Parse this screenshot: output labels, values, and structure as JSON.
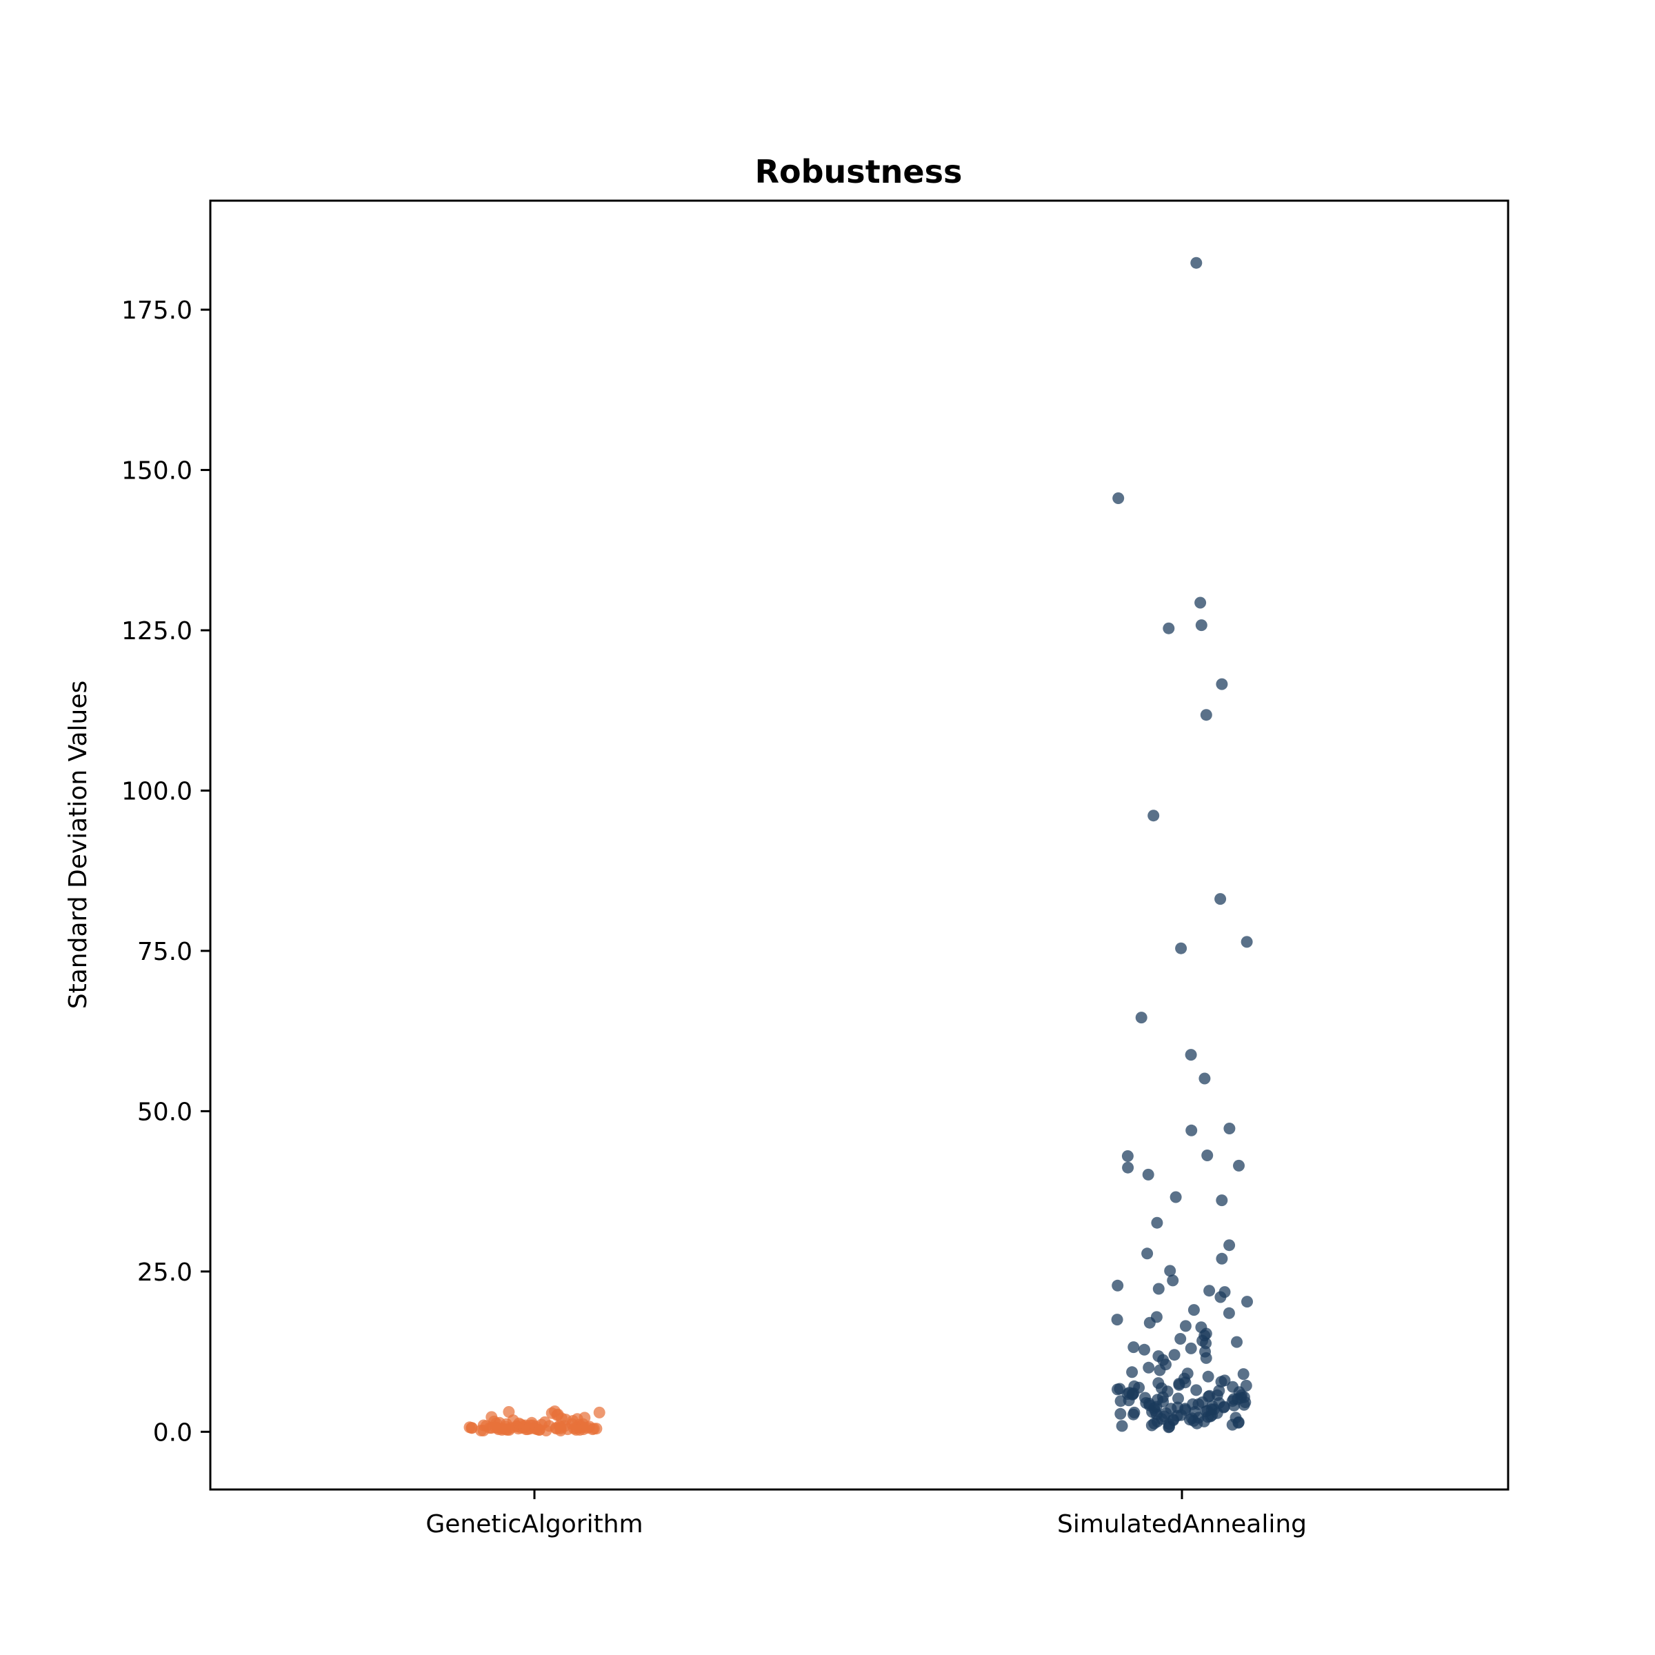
{
  "chart_data": {
    "type": "scatter",
    "title": "Robustness",
    "xlabel": "",
    "ylabel": "Standard Deviation Values",
    "ylim": [
      -9,
      192
    ],
    "yticks": [
      0,
      25,
      50,
      75,
      100,
      125,
      150,
      175
    ],
    "ytick_labels": [
      "0.0",
      "25.0",
      "50.0",
      "75.0",
      "100.0",
      "125.0",
      "150.0",
      "175.0"
    ],
    "categories": [
      "GeneticAlgorithm",
      "SimulatedAnnealing"
    ],
    "grid": false,
    "legend": "none",
    "series": [
      {
        "category": "GeneticAlgorithm",
        "color": "#E8713A",
        "values": [
          3.2,
          3.1,
          2.9,
          3.0,
          2.7,
          2.6,
          2.3,
          2.2,
          2.1,
          2.0,
          1.9,
          1.8,
          1.7,
          1.6,
          1.5,
          1.4,
          1.3,
          1.2,
          1.2,
          1.1,
          1.0,
          1.0,
          0.9,
          0.9,
          0.8,
          0.8,
          0.8,
          0.7,
          0.7,
          0.7,
          0.6,
          0.6,
          0.6,
          0.6,
          0.5,
          0.5,
          0.5,
          0.5,
          0.4,
          0.4,
          0.4,
          0.4,
          0.3,
          0.3,
          0.3,
          0.3,
          0.2,
          0.2,
          0.2,
          0.2,
          0.9,
          1.1,
          0.7,
          0.5,
          1.3,
          0.6,
          0.8,
          0.4,
          1.0,
          0.6,
          0.3,
          0.9,
          0.5,
          0.7,
          1.2,
          0.4,
          0.8,
          0.6,
          0.5,
          1.4,
          0.3,
          0.7,
          0.9,
          0.5,
          0.6,
          1.1,
          0.4,
          0.8,
          0.6,
          0.3,
          1.0,
          0.5,
          0.7,
          0.4,
          0.6
        ]
      },
      {
        "category": "SimulatedAnnealing",
        "color": "#1B3A5C",
        "values": [
          182.3,
          145.6,
          129.3,
          125.8,
          125.3,
          116.6,
          111.8,
          96.1,
          83.1,
          76.4,
          75.4,
          64.6,
          58.8,
          55.1,
          47.3,
          47.0,
          43.1,
          43.0,
          41.5,
          41.2,
          40.1,
          36.6,
          36.1,
          32.6,
          29.1,
          27.8,
          27.0,
          25.1,
          23.6,
          22.8,
          22.3,
          22.0,
          21.8,
          21.0,
          20.3,
          19.0,
          18.5,
          17.9,
          17.5,
          17.0,
          16.5,
          16.3,
          15.3,
          15.0,
          14.5,
          14.2,
          14.0,
          13.8,
          13.2,
          13.0,
          12.8,
          12.5,
          12.0,
          11.8,
          11.5,
          11.2,
          10.5,
          10.0,
          9.6,
          9.3,
          9.1,
          9.0,
          8.6,
          8.3,
          8.0,
          7.8,
          7.6,
          7.5,
          7.3,
          7.1,
          7.0,
          6.8,
          6.6,
          6.5,
          6.3,
          6.1,
          6.0,
          5.9,
          5.8,
          5.7,
          5.6,
          5.5,
          5.4,
          5.3,
          5.2,
          5.1,
          5.0,
          4.9,
          4.8,
          4.7,
          4.6,
          4.5,
          4.4,
          4.3,
          4.2,
          4.1,
          4.0,
          3.9,
          3.8,
          3.7,
          3.6,
          3.5,
          3.4,
          3.3,
          3.2,
          3.1,
          3.0,
          2.9,
          2.8,
          2.7,
          2.6,
          2.5,
          2.4,
          2.3,
          2.2,
          2.1,
          2.0,
          1.9,
          1.8,
          1.7,
          1.6,
          1.5,
          1.4,
          1.3,
          1.2,
          1.1,
          1.0,
          0.9,
          0.8,
          0.7,
          6.2,
          5.4,
          4.8,
          3.6,
          2.9,
          6.9,
          4.1,
          3.3,
          5.7,
          2.4,
          7.2,
          4.5,
          3.8,
          1.6,
          5.1,
          2.7,
          6.4,
          3.1,
          4.3,
          1.9,
          5.9,
          2.2,
          3.5,
          6.7,
          4.6,
          1.3,
          3.9,
          2.6,
          5.3,
          7.7
        ]
      }
    ]
  }
}
